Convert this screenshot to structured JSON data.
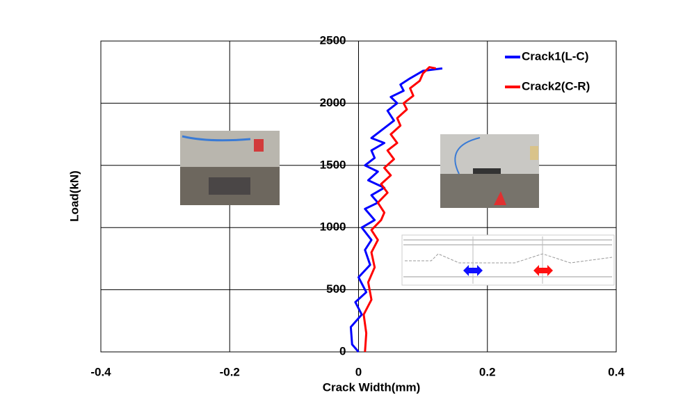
{
  "chart_data": {
    "type": "line",
    "xlabel": "Crack Width(mm)",
    "ylabel": "Load(kN)",
    "xlim": [
      -0.4,
      0.4
    ],
    "xticks": [
      -0.4,
      -0.2,
      0,
      0.2,
      0.4
    ],
    "ylim": [
      0,
      2500
    ],
    "yticks": [
      0,
      500,
      1000,
      1500,
      2000,
      2500
    ],
    "grid": true,
    "legend": "upper right",
    "series": [
      {
        "name": "Crack1(L-C)",
        "color": "#0000ff",
        "x": [
          0,
          -0.01,
          -0.012,
          0.005,
          -0.005,
          0.012,
          0.0,
          0.018,
          0.01,
          0.02,
          0.005,
          0.025,
          0.01,
          0.03,
          0.02,
          0.04,
          0.015,
          0.03,
          0.01,
          0.025,
          0.02,
          0.04,
          0.02,
          0.04,
          0.055,
          0.045,
          0.06,
          0.05,
          0.07,
          0.065,
          0.08,
          0.1,
          0.13
        ],
        "values": [
          0,
          60,
          200,
          300,
          400,
          480,
          600,
          700,
          820,
          900,
          1000,
          1060,
          1150,
          1200,
          1260,
          1320,
          1380,
          1450,
          1500,
          1560,
          1620,
          1680,
          1720,
          1800,
          1860,
          1940,
          2000,
          2050,
          2100,
          2150,
          2200,
          2260,
          2280
        ]
      },
      {
        "name": "Crack2(C-R)",
        "color": "#ff0000",
        "x": [
          0.01,
          0.012,
          0.008,
          0.02,
          0.015,
          0.025,
          0.02,
          0.03,
          0.02,
          0.035,
          0.04,
          0.03,
          0.045,
          0.035,
          0.05,
          0.04,
          0.055,
          0.045,
          0.06,
          0.05,
          0.065,
          0.06,
          0.075,
          0.07,
          0.085,
          0.08,
          0.095,
          0.1,
          0.11,
          0.12
        ],
        "values": [
          0,
          150,
          300,
          420,
          560,
          680,
          800,
          900,
          980,
          1060,
          1120,
          1200,
          1280,
          1350,
          1420,
          1480,
          1550,
          1620,
          1680,
          1750,
          1820,
          1880,
          1950,
          2000,
          2060,
          2120,
          2180,
          2240,
          2290,
          2280
        ]
      }
    ]
  }
}
